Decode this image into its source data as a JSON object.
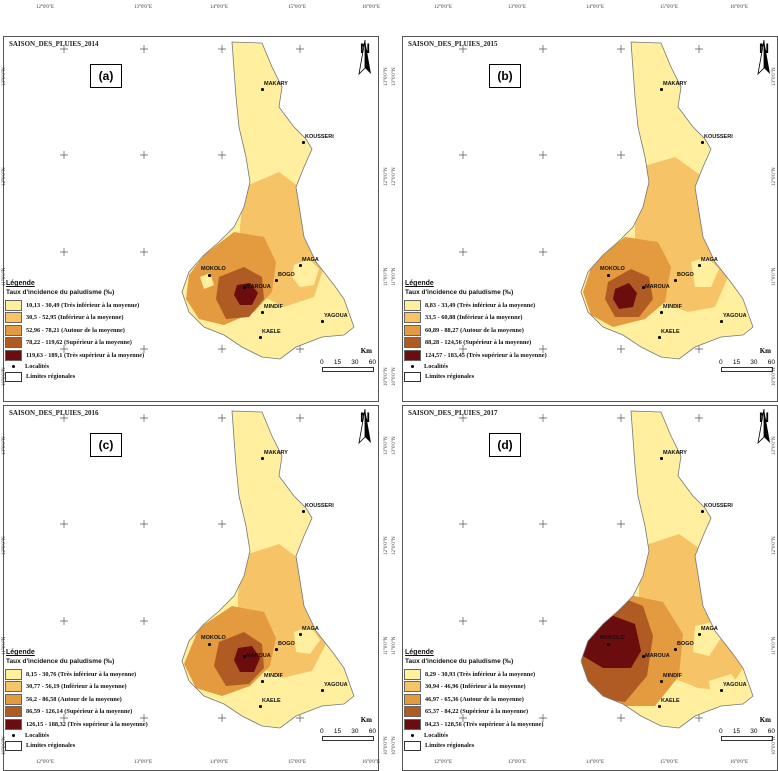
{
  "colors": {
    "c1": "#ffef9f",
    "c2": "#f6c466",
    "c3": "#e49a3e",
    "c4": "#b05a24",
    "c5": "#6b0c0e",
    "border": "#777777"
  },
  "coords": {
    "top": [
      "12°0'0\"E",
      "13°0'0\"E",
      "14°0'0\"E",
      "15°0'0\"E",
      "16°0'0\"E"
    ],
    "side": [
      "13°0'0\"N",
      "12°0'0\"N",
      "11°0'0\"N",
      "10°0'0\"N"
    ]
  },
  "legend_title": "Légende",
  "legend_subtitle": "Taux d'incidence du paludisme (‰)",
  "localities_label": "Localités",
  "limits_label": "Limites régionales",
  "north_label": "N",
  "scale": {
    "unit": "Km",
    "ticks": [
      "0",
      "15",
      "30",
      "60"
    ]
  },
  "cities": {
    "makary": "MAKARY",
    "kousseri": "KOUSSERI",
    "maga": "MAGA",
    "mokolo": "MOKOLO",
    "bogo": "BOGO",
    "maroua": "MAROUA",
    "mindif": "MINDIF",
    "yagoua": "YAGOUA",
    "kaele": "KAELE"
  },
  "panels": [
    {
      "title": "SAISON_DES_PLUIES_2014",
      "label": "(a)",
      "classes": [
        "10,13 - 30,49 (Très inférieur à la moyenne)",
        "30,5 - 52,95 (Inférieur à la moyenne)",
        "52,96 - 78,21 (Autour de la moyenne)",
        "78,22 - 119,62 (Supérieur à la moyenne)",
        "119,63 - 189,1 (Très supérieur à la moyenne)"
      ]
    },
    {
      "title": "SAISON_DES_PLUIES_2015",
      "label": "(b)",
      "classes": [
        "8,83 - 33,49 (Très inférieur à la moyenne)",
        "33,5 - 60,88 (Inférieur à la moyenne)",
        "60,89 - 88,27 (Autour de la moyenne)",
        "88,28 - 124,56 (Supérieur à la moyenne)",
        "124,57 - 183,45 (Très supérieur à la moyenne)"
      ]
    },
    {
      "title": "SAISON_DES_PLUIES_2016",
      "label": "(c)",
      "classes": [
        "8,15 - 30,76 (Très inférieur à la moyenne)",
        "30,77 - 56,19 (Inférieur à la moyenne)",
        "56,2 - 86,58 (Autour de la moyenne)",
        "86,59 - 126,14 (Supérieur à la moyenne)",
        "126,15 - 188,32 (Très supérieur à la moyenne)"
      ]
    },
    {
      "title": "SAISON_DES_PLUIES_2017",
      "label": "(d)",
      "classes": [
        "8,29 - 30,93 (Très inférieur à la moyenne)",
        "30,94 - 46,96 (Inférieur à la moyenne)",
        "46,97 - 65,36 (Autour de la moyenne)",
        "65,37 - 84,22 (Supérieur à la moyenne)",
        "84,23 - 128,56 (Très supérieur à la moyenne)"
      ]
    }
  ]
}
